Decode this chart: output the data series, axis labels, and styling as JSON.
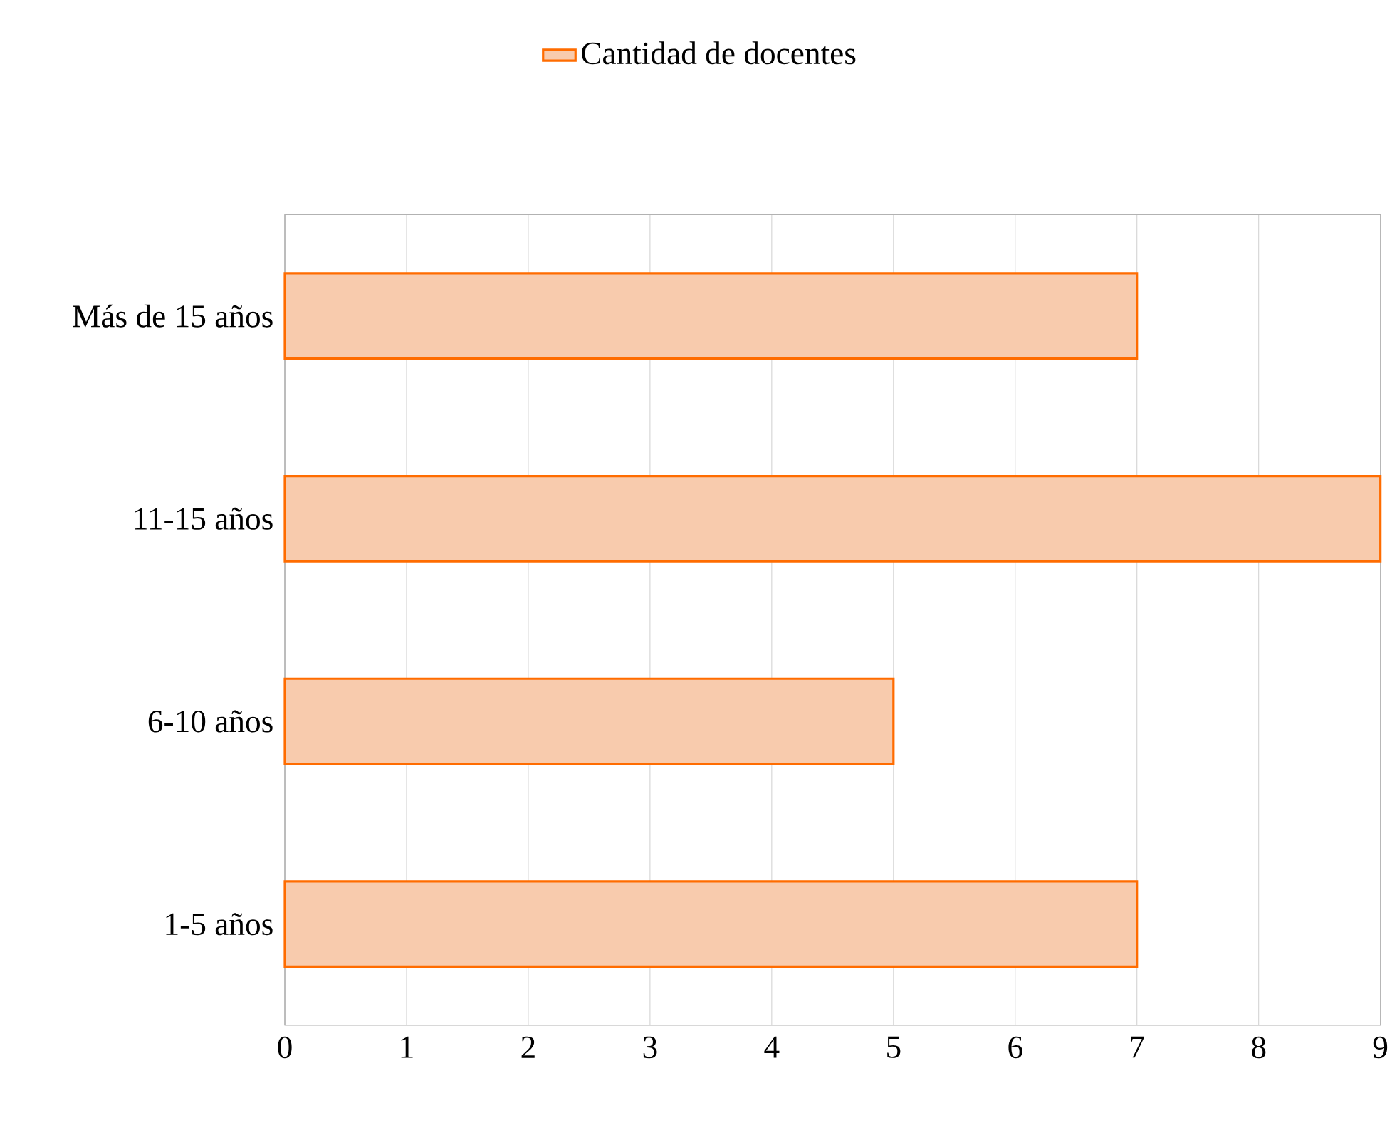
{
  "chart_data": {
    "type": "bar",
    "orientation": "horizontal",
    "categories": [
      "Más de 15 años",
      "11-15 años",
      "6-10 años",
      "1-5 años"
    ],
    "series": [
      {
        "name": "Cantidad de docentes",
        "color": "#f8cbad",
        "values": [
          7,
          9,
          5,
          7
        ]
      }
    ],
    "xlim": [
      0,
      9
    ],
    "xticks": [
      0,
      1,
      2,
      3,
      4,
      5,
      6,
      7,
      8,
      9
    ],
    "grid": "x",
    "legend": "top"
  }
}
